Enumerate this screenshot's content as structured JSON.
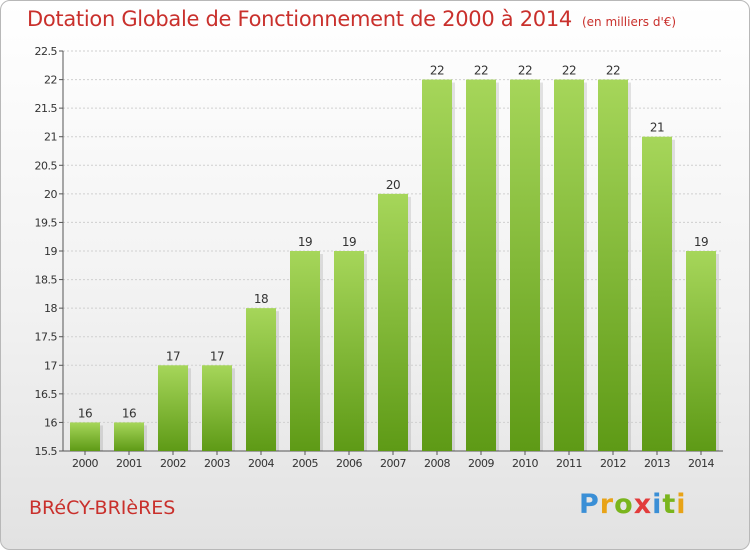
{
  "title": "Dotation Globale de Fonctionnement de 2000 à 2014",
  "subtitle": "(en milliers d'€)",
  "commune": "BRéCY-BRIèRES",
  "logo": {
    "text": "Proxiti",
    "letters": [
      "P",
      "r",
      "o",
      "x",
      "i",
      "t",
      "i"
    ],
    "colors": [
      "#3a8fd6",
      "#e8a317",
      "#7ab51d",
      "#e23b3b",
      "#3a8fd6",
      "#7ab51d",
      "#e8a317"
    ]
  },
  "colors": {
    "title": "#c9302c",
    "bar_top": "#a6d65a",
    "bar_bottom": "#5e9a16",
    "grid": "#d0d0d0",
    "axis": "#555555"
  },
  "chart_data": {
    "type": "bar",
    "title": "Dotation Globale de Fonctionnement de 2000 à 2014",
    "subtitle": "(en milliers d'€)",
    "categories": [
      "2000",
      "2001",
      "2002",
      "2003",
      "2004",
      "2005",
      "2006",
      "2007",
      "2008",
      "2009",
      "2010",
      "2011",
      "2012",
      "2013",
      "2014"
    ],
    "values": [
      16,
      16,
      17,
      17,
      18,
      19,
      19,
      20,
      22,
      22,
      22,
      22,
      22,
      21,
      19
    ],
    "ylim": [
      15.5,
      22.5
    ],
    "yticks": [
      15.5,
      16,
      16.5,
      17,
      17.5,
      18,
      18.5,
      19,
      19.5,
      20,
      20.5,
      21,
      21.5,
      22,
      22.5
    ],
    "grid": true,
    "data_labels": true,
    "legend": "none"
  }
}
